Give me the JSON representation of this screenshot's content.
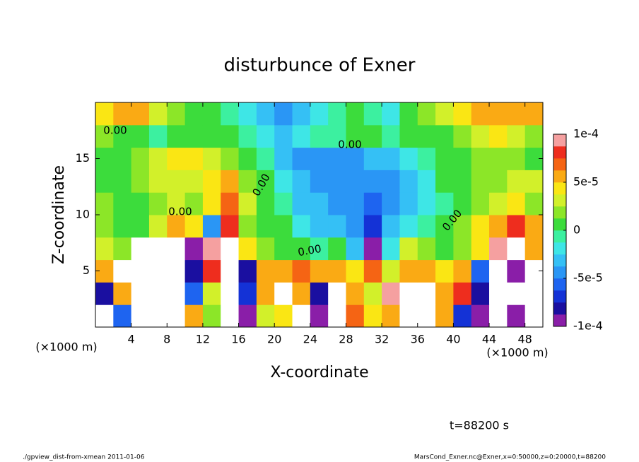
{
  "chart_data": {
    "type": "heatmap",
    "title": "disturbunce of Exner",
    "x_label": "X-coordinate",
    "y_label": "Z-coordinate",
    "x_unit_left": "(×1000 m)",
    "x_unit_right": "(×1000 m)",
    "time_label": "t=88200 s",
    "footer_left": "./gpview_dist-from-xmean  2011-01-06",
    "footer_right": "MarsCond_Exner.nc@Exner,x=0:50000,z=0:20000,t=88200",
    "contour_labels": [
      "0.00",
      "0.00",
      "0.00",
      "0.00",
      "0.00",
      "0.00"
    ],
    "xlim": [
      0,
      50
    ],
    "xticks": [
      4,
      8,
      12,
      16,
      20,
      24,
      28,
      32,
      36,
      40,
      44,
      48
    ],
    "ylim": [
      0,
      20
    ],
    "yticks": [
      5,
      10,
      15
    ],
    "clim": [
      -0.0001,
      0.0001
    ],
    "cticks": [
      {
        "value": 0.0001,
        "label": "1e-4"
      },
      {
        "value": 5e-05,
        "label": "5e-5"
      },
      0,
      {
        "value": -5e-05,
        "label": "-5e-5"
      },
      {
        "value": -0.0001,
        "label": "-1e-4"
      }
    ],
    "colors": [
      "#8a1ea8",
      "#1a0fa0",
      "#1432d6",
      "#1e64f0",
      "#2a96f5",
      "#35c0f5",
      "#3ee6e6",
      "#3cf0a0",
      "#3cdc3c",
      "#8ce628",
      "#d2f02a",
      "#fae614",
      "#faaa14",
      "#f56414",
      "#ee2d1e",
      "#f5a0a0"
    ],
    "x": [
      1,
      3,
      5,
      7,
      9,
      11,
      13,
      15,
      17,
      19,
      21,
      23,
      25,
      27,
      29,
      31,
      33,
      35,
      37,
      39,
      41,
      43,
      45,
      47,
      49
    ],
    "y": [
      1,
      3,
      5,
      7,
      9,
      11,
      13,
      15,
      17,
      19
    ],
    "z": [
      [
        0.00012,
        -6e-05,
        0.00011,
        0.00012,
        0.00012,
        5e-05,
        2e-05,
        0.00011,
        -9e-05,
        3e-05,
        4e-05,
        0.00011,
        -9e-05,
        0.00012,
        7e-05,
        4e-05,
        6e-05,
        0.00013,
        0.00012,
        5e-05,
        -7e-05,
        -9e-05,
        0.00012,
        -0.0001,
        0.00012
      ],
      [
        -8e-05,
        5e-05,
        0.00013,
        0.00012,
        0.00011,
        -6e-05,
        3e-05,
        0.00011,
        -7e-05,
        5e-05,
        0.00012,
        5e-05,
        -8e-05,
        0.00012,
        6e-05,
        3e-05,
        9e-05,
        0.00012,
        0.00011,
        6e-05,
        8e-05,
        -8e-05,
        0.00012,
        -0.00011,
        0.00012
      ],
      [
        6e-05,
        0.00012,
        0.00014,
        0.00013,
        0.00012,
        -8e-05,
        8e-05,
        0.00012,
        -8e-05,
        6e-05,
        6e-05,
        7e-05,
        5e-05,
        6e-05,
        4e-05,
        7e-05,
        3e-05,
        6e-05,
        5e-05,
        4e-05,
        6e-05,
        -6e-05,
        0.00012,
        -9e-05,
        0.00012
      ],
      [
        3e-05,
        2e-05,
        0.00011,
        0.00012,
        0.00012,
        -9e-05,
        9e-05,
        0.00012,
        4e-05,
        2e-05,
        1e-05,
        0,
        -1e-05,
        0,
        -3e-05,
        -9e-05,
        -2e-05,
        3e-05,
        2e-05,
        1e-05,
        2e-05,
        4e-05,
        9e-05,
        0.00011,
        5e-05
      ],
      [
        2e-05,
        1e-05,
        1e-05,
        3e-05,
        6e-05,
        4e-05,
        -4e-05,
        8e-05,
        2e-05,
        1e-05,
        0,
        -2e-05,
        -3e-05,
        -3e-05,
        -5e-05,
        -7e-05,
        -3e-05,
        -2e-05,
        -1e-05,
        1e-05,
        2e-05,
        4e-05,
        6e-05,
        8e-05,
        5e-05
      ],
      [
        2e-05,
        1e-05,
        1e-05,
        2e-05,
        3e-05,
        2e-05,
        4e-05,
        7e-05,
        3e-05,
        1e-05,
        -1e-05,
        -3e-05,
        -3e-05,
        -4e-05,
        -5e-05,
        -6e-05,
        -4e-05,
        -3e-05,
        -2e-05,
        -1e-05,
        0,
        2e-05,
        3e-05,
        4e-05,
        2e-05
      ],
      [
        1e-05,
        1e-05,
        2e-05,
        3e-05,
        3e-05,
        3e-05,
        4e-05,
        5e-05,
        2e-05,
        0,
        -2e-05,
        -3e-05,
        -4e-05,
        -5e-05,
        -5e-05,
        -4e-05,
        -4e-05,
        -3e-05,
        -2e-05,
        0,
        1e-05,
        2e-05,
        2e-05,
        3e-05,
        3e-05
      ],
      [
        1e-05,
        1e-05,
        2e-05,
        3e-05,
        4e-05,
        4e-05,
        3e-05,
        2e-05,
        1e-05,
        -1e-05,
        -3e-05,
        -4e-05,
        -4e-05,
        -4e-05,
        -4e-05,
        -3e-05,
        -3e-05,
        -2e-05,
        -1e-05,
        0,
        1e-05,
        2e-05,
        2e-05,
        2e-05,
        1e-05
      ],
      [
        2e-05,
        1e-05,
        0,
        -1e-05,
        0,
        1e-05,
        0,
        0,
        -1e-05,
        -2e-05,
        -3e-05,
        -2e-05,
        -1e-05,
        -1e-05,
        0,
        0,
        -1e-05,
        0,
        0,
        1e-05,
        2e-05,
        3e-05,
        4e-05,
        3e-05,
        2e-05
      ],
      [
        4e-05,
        5e-05,
        6e-05,
        3e-05,
        2e-05,
        1e-05,
        0,
        -1e-05,
        -2e-05,
        -3e-05,
        -4e-05,
        -3e-05,
        -2e-05,
        -1e-05,
        0,
        -1e-05,
        -2e-05,
        0,
        2e-05,
        3e-05,
        4e-05,
        5e-05,
        6e-05,
        6e-05,
        5e-05
      ]
    ]
  }
}
